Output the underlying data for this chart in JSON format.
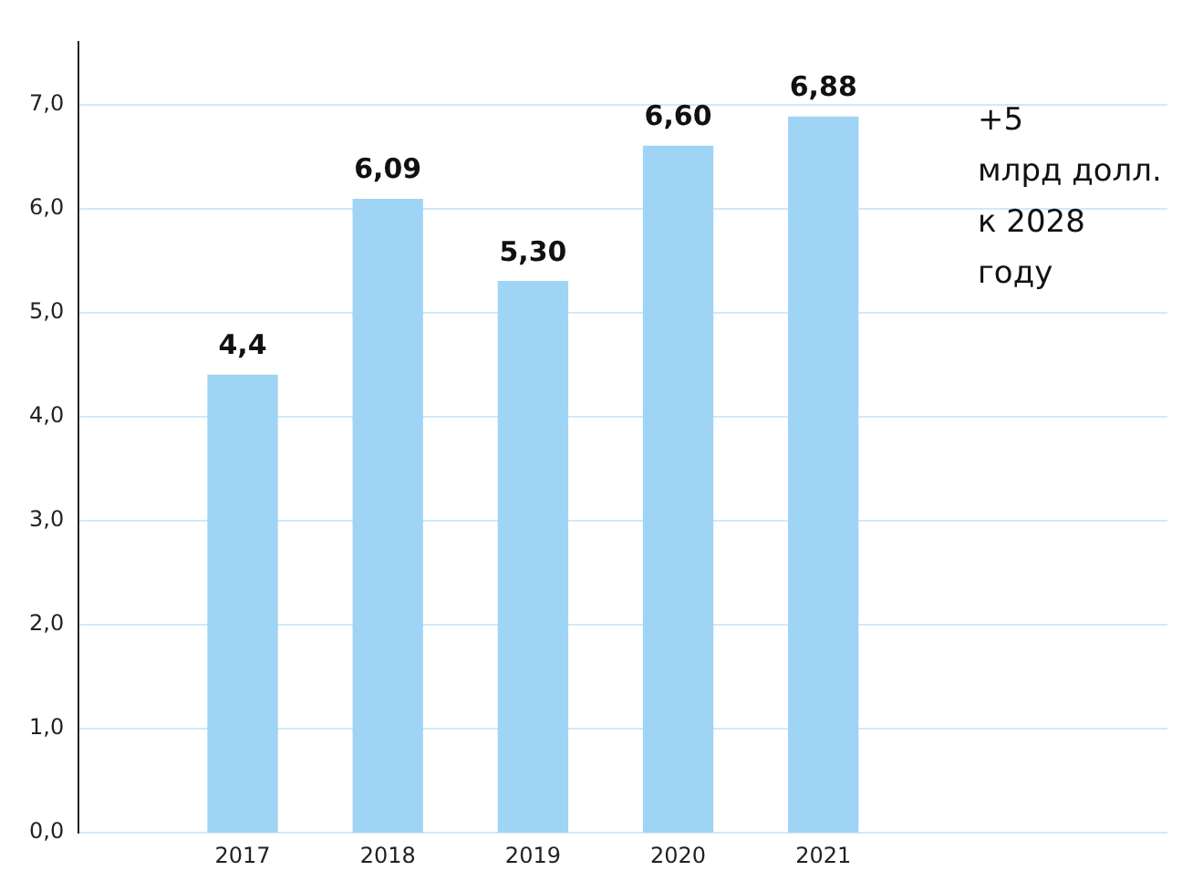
{
  "chart_data": {
    "type": "bar",
    "categories": [
      "2017",
      "2018",
      "2019",
      "2020",
      "2021"
    ],
    "values": [
      4.4,
      6.09,
      5.3,
      6.6,
      6.88
    ],
    "value_labels": [
      "4,4",
      "6,09",
      "5,30",
      "6,60",
      "6,88"
    ],
    "color": "#9fd4f5",
    "ylim": [
      0,
      7.6
    ],
    "yticks": [
      {
        "value": 0,
        "label": "0,0"
      },
      {
        "value": 1,
        "label": "1,0"
      },
      {
        "value": 2,
        "label": "2,0"
      },
      {
        "value": 3,
        "label": "3,0"
      },
      {
        "value": 4,
        "label": "4,0"
      },
      {
        "value": 5,
        "label": "5,0"
      },
      {
        "value": 6,
        "label": "6,0"
      },
      {
        "value": 7,
        "label": "7,0"
      }
    ],
    "grid": "y",
    "annotations": [
      "+5\nмлрд долл.\nк 2028 году"
    ]
  }
}
